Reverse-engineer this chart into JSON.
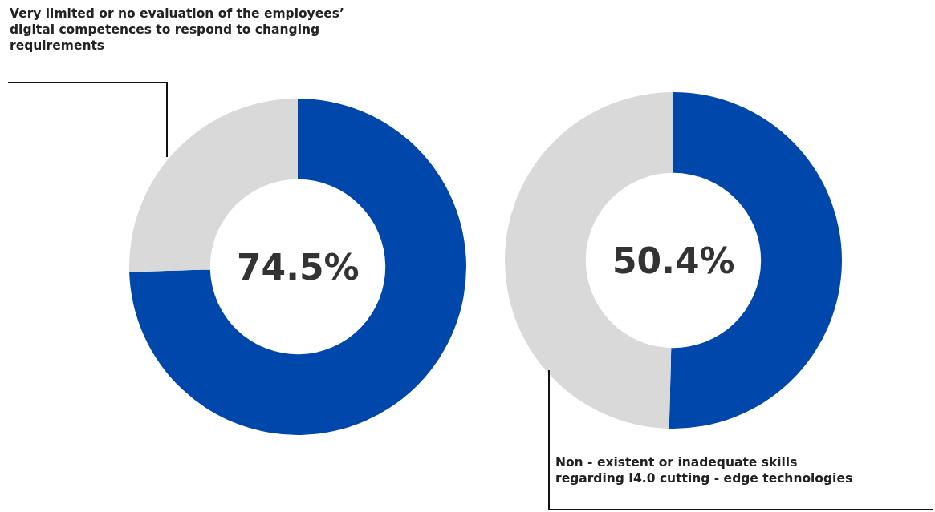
{
  "chart_data": [
    {
      "type": "donut",
      "categories": [
        null,
        null
      ],
      "values": [
        74.5,
        25.5
      ],
      "colors": [
        "#0047ab",
        "#d9d9d9"
      ],
      "value_labels": [
        "74.5%",
        null
      ],
      "annotations": [
        "Very limited or no evaluation of the employees’ digital competences to respond to changing requirements"
      ]
    },
    {
      "type": "donut",
      "categories": [
        null,
        null
      ],
      "values": [
        50.4,
        49.6
      ],
      "colors": [
        "#0047ab",
        "#d9d9d9"
      ],
      "value_labels": [
        "50.4%",
        null
      ],
      "annotations": [
        "Non - existent or inadequate skills regarding I4.0 cutting - edge technologies"
      ]
    }
  ]
}
